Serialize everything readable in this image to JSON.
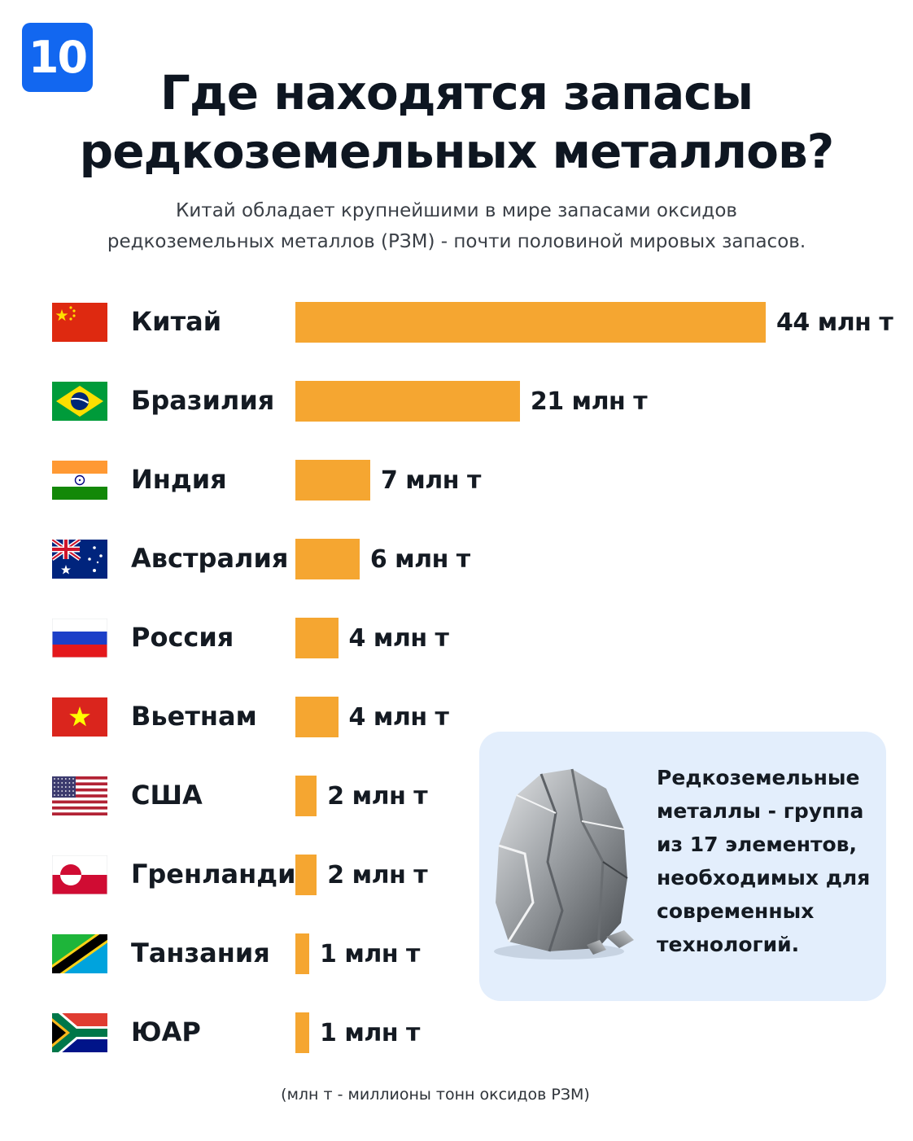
{
  "badge": "10",
  "title": [
    "Где находятся запасы",
    "редкоземельных металлов?"
  ],
  "subtitle": [
    "Китай обладает крупнейшими в мире запасами оксидов",
    "редкоземельных металлов (РЗМ) - почти половиной мировых запасов."
  ],
  "chart_data": {
    "type": "bar",
    "orientation": "horizontal",
    "categories": [
      "Китай",
      "Бразилия",
      "Индия",
      "Австралия",
      "Россия",
      "Вьетнам",
      "США",
      "Гренландия",
      "Танзания",
      "ЮАР"
    ],
    "values": [
      44,
      21,
      7,
      6,
      4,
      4,
      2,
      2,
      1,
      1
    ],
    "value_labels": [
      "44 млн т",
      "21 млн т",
      "7 млн т",
      "6 млн т",
      "4 млн т",
      "4 млн т",
      "2 млн т",
      "2 млн т",
      "1 млн т",
      "1 млн т"
    ],
    "flags": [
      "china-flag-icon",
      "brazil-flag-icon",
      "india-flag-icon",
      "australia-flag-icon",
      "russia-flag-icon",
      "vietnam-flag-icon",
      "usa-flag-icon",
      "greenland-flag-icon",
      "tanzania-flag-icon",
      "south-africa-flag-icon"
    ],
    "bar_color": "#f5a631",
    "xlim": [
      0,
      44
    ],
    "grid": false,
    "legend": "none"
  },
  "info_box": {
    "lines": [
      "Редкоземельные",
      "металлы - группа",
      "из 17 элементов,",
      "необходимых для",
      "современных",
      "технологий."
    ],
    "image": "rock-icon"
  },
  "footnote": "(млн т - миллионы тонн оксидов РЗМ)",
  "colors": {
    "badge": "#1267f0",
    "bar": "#f5a631",
    "info_box_bg": "#e3eefc",
    "text": "#141a22"
  }
}
